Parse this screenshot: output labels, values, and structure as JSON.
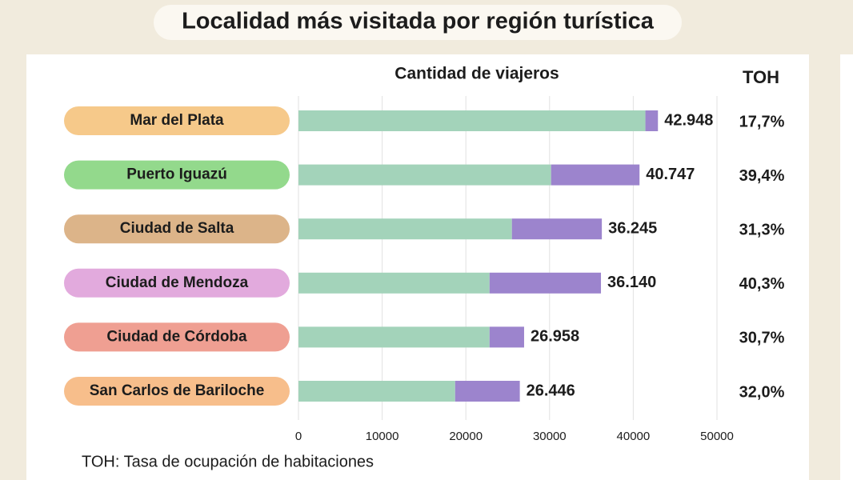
{
  "chart_data": {
    "type": "stacked-bar-horizontal",
    "title": "Localidad más visitada por región turística",
    "subtitle": "Cantidad de viajeros",
    "categories": [
      "Mar del Plata",
      "Puerto Iguazú",
      "Ciudad de Salta",
      "Ciudad de Mendoza",
      "Ciudad de Córdoba",
      "San Carlos de Bariloche"
    ],
    "category_colors": [
      "#f6c98a",
      "#93d98c",
      "#dcb489",
      "#e2aadd",
      "#ef9f92",
      "#f7be8b"
    ],
    "series": [
      {
        "color": "#a3d3ba",
        "values": [
          41450,
          30180,
          25500,
          22830,
          22830,
          18720
        ]
      },
      {
        "color": "#9c84cd",
        "values": [
          1498,
          10567,
          10745,
          13310,
          4128,
          7726
        ]
      }
    ],
    "totals": {
      "values": [
        42948,
        40747,
        36245,
        36140,
        26958,
        26446
      ],
      "value_labels": [
        "42.948",
        "40.747",
        "36.245",
        "36.140",
        "26.958",
        "26.446"
      ]
    },
    "toh": {
      "title": "TOH",
      "values": [
        17.7,
        39.4,
        31.3,
        40.3,
        30.7,
        32.0
      ],
      "value_labels": [
        "17,7%",
        "39,4%",
        "31,3%",
        "40,3%",
        "30,7%",
        "32,0%"
      ]
    },
    "xlim": [
      0,
      50000
    ],
    "xticks": [
      0,
      10000,
      20000,
      30000,
      40000,
      50000
    ],
    "grid": true,
    "footnote": "TOH: Tasa de ocupación de habitaciones"
  }
}
